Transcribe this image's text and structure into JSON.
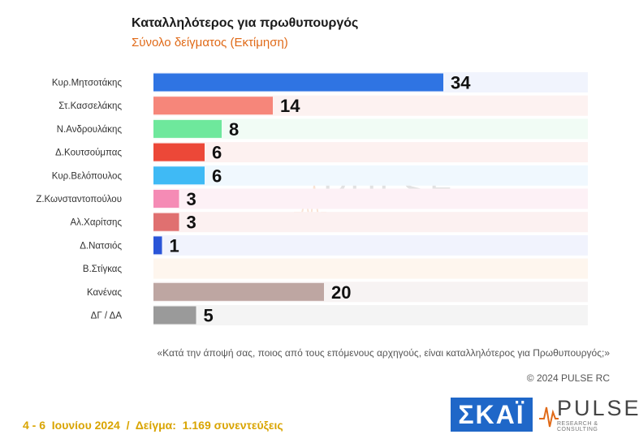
{
  "title": "Καταλληλότερος για πρωθυπουργός",
  "subtitle": "Σύνολο δείγματος   (Εκτίμηση)",
  "question": "«Κατά την άποψή σας, ποιος από τους επόμενους αρχηγούς, είναι καταλληλότερος για Πρωθυπουργός;»",
  "copyright": "© 2024 PULSE RC",
  "footer": "4 - 6  Ιουνίου 2024  /  Δείγμα:  1.169 συνεντεύξεις",
  "logos": {
    "skai": "ΣΚΑΪ",
    "pulse": "PULSE",
    "pulse_sub": "RESEARCH & CONSULTING"
  },
  "chart_data": {
    "type": "bar",
    "orientation": "horizontal",
    "title": "Καταλληλότερος για πρωθυπουργός",
    "subtitle": "Σύνολο δείγματος   (Εκτίμηση)",
    "categories": [
      "Κυρ.Μητσοτάκης",
      "Στ.Κασσελάκης",
      "Ν.Ανδρουλάκης",
      "Δ.Κουτσούμπας",
      "Κυρ.Βελόπουλος",
      "Ζ.Κωνσταντοπούλου",
      "Αλ.Χαρίτσης",
      "Δ.Νατσιός",
      "Β.Στίγκας",
      "Κανένας",
      "ΔΓ / ΔΑ"
    ],
    "values": [
      34,
      14,
      8,
      6,
      6,
      3,
      3,
      1,
      null,
      20,
      5
    ],
    "data_labels": [
      "34",
      "14",
      "8",
      "6",
      "6",
      "3",
      "3",
      "1",
      "",
      "20",
      "5"
    ],
    "colors": [
      "#2f74e3",
      "#f6867a",
      "#6ee89c",
      "#ec4838",
      "#3fbaf5",
      "#f58bb5",
      "#e07070",
      "#2a55d8",
      "#ffffff",
      "#bea6a2",
      "#9a9a9a"
    ],
    "row_bg_colors": [
      "#f1f4fd",
      "#fdf2f1",
      "#f1fcf5",
      "#fdf1f0",
      "#f0f8fe",
      "#fdf1f6",
      "#fcf1f1",
      "#f1f3fd",
      "#fef6ee",
      "#f7f3f3",
      "#f4f4f4"
    ],
    "xlim": [
      0,
      100
    ],
    "grid": false,
    "legend": "none"
  }
}
